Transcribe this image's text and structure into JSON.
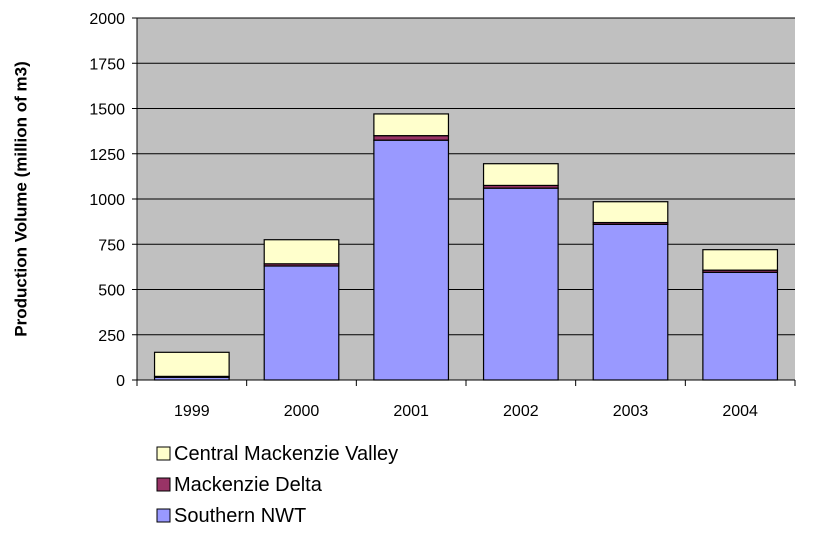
{
  "chart_data": {
    "type": "bar",
    "stacked": true,
    "title": "",
    "xlabel": "",
    "ylabel": "Production Volume (million of m3)",
    "categories": [
      "1999",
      "2000",
      "2001",
      "2002",
      "2003",
      "2004"
    ],
    "ylim": [
      0,
      2000
    ],
    "yticks": [
      0,
      250,
      500,
      750,
      1000,
      1250,
      1500,
      1750,
      2000
    ],
    "grid": true,
    "legend_position": "bottom-left",
    "series": [
      {
        "name": "Southern NWT",
        "color": "#9999ff",
        "values": [
          15,
          630,
          1325,
          1060,
          860,
          595
        ]
      },
      {
        "name": "Mackenzie Delta",
        "color": "#993366",
        "values": [
          5,
          12,
          25,
          15,
          10,
          12
        ]
      },
      {
        "name": "Central Mackenzie Valley",
        "color": "#ffffcc",
        "values": [
          133,
          133,
          120,
          120,
          115,
          113
        ]
      }
    ],
    "legend_order": [
      "Central Mackenzie Valley",
      "Mackenzie Delta",
      "Southern NWT"
    ],
    "plot_background": "#c0c0c0"
  }
}
